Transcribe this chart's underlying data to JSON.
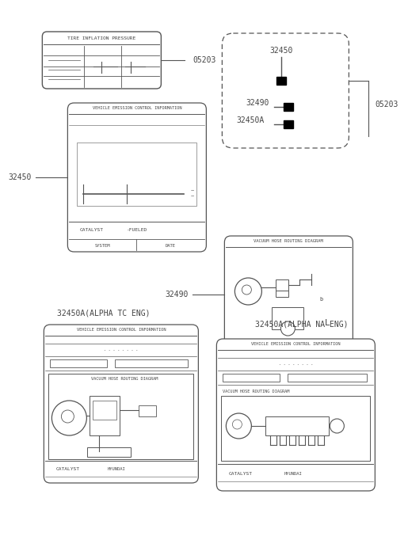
{
  "bg_color": "#ffffff",
  "lc": "#555555",
  "tc": "#444444",
  "label_05203_1": "05203",
  "label_05203_2": "05203",
  "label_32450_left": "32450",
  "label_32490_right": "32490",
  "label_32450_tr": "32450",
  "label_32490_tr": "32490",
  "label_32450A_tr": "32450A",
  "label_tc": "32450A(ALPHA TC ENG)",
  "label_na": "32450A(ALPHA NA ENG)",
  "tire_title": "TIRE INFLATION PRESSURE",
  "emit_title": "VEHICLE EMISSION CONTROL INFORMATION",
  "vac_title1": "VACUUM HOSE ROUTING DIAGRAM",
  "catalyst1": "CATALYST",
  "fueled1": "-FUELED",
  "system1": "SYSTEM",
  "date1": "DATE",
  "tc_title": "VEHICLE EMISSION CONTROL INFORMATION",
  "tc_vac": "VACUUM HOSE ROUTING DIAGRAM",
  "tc_cat": "CATALYST",
  "tc_hyu": "HYUNDAI",
  "na_title": "VEHICLE EMISSION CONTROL INFORMATION",
  "na_vac": "VACUUM HOSE ROUTING DIAGRAM",
  "na_cat": "CATALYST",
  "na_hyu": "HYUNDAI"
}
